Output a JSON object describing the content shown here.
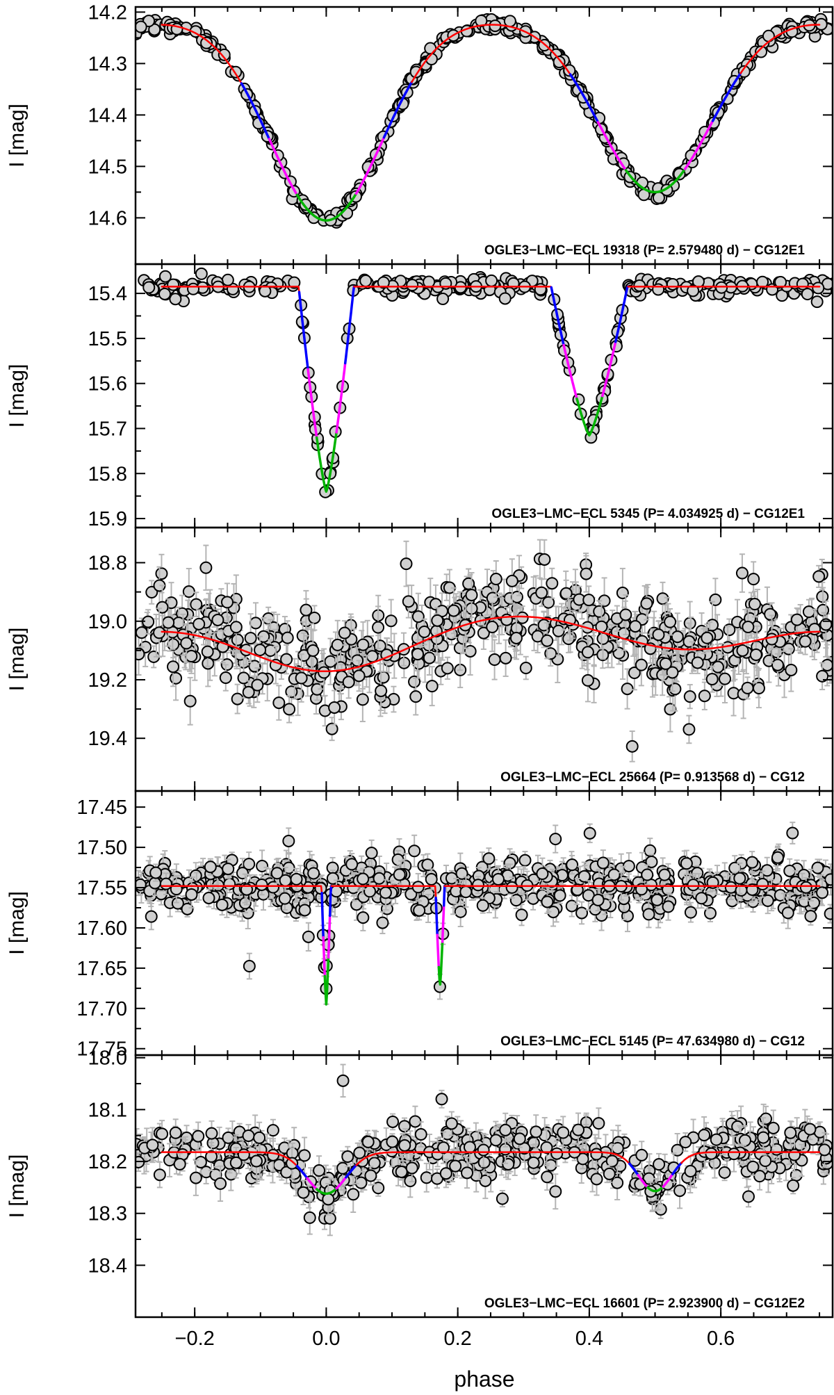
{
  "chart_data": [
    {
      "type": "scatter",
      "id": "p1",
      "annotation": "OGLE3−LMC−ECL 19318  (P= 2.579480 d) − CG12E1",
      "ylabel": "I [mag]",
      "ylim": [
        14.19,
        14.69
      ],
      "yticks": [
        14.2,
        14.3,
        14.4,
        14.5,
        14.6
      ],
      "ytick_labels": [
        "14.2",
        "14.3",
        "14.4",
        "14.5",
        "14.6"
      ],
      "model": {
        "base": 14.215,
        "fit_range": [
          -0.25,
          0.75
        ],
        "eclipses": [
          {
            "center": 0.0,
            "depth": 0.39,
            "width": 0.085,
            "shape": "gauss",
            "ingress": 0.13,
            "core": 0.045
          },
          {
            "center": 0.5,
            "depth": 0.335,
            "width": 0.085,
            "shape": "gauss",
            "ingress": 0.13,
            "core": 0.045
          }
        ]
      },
      "scatter": {
        "n": 420,
        "sigma": 0.006,
        "err": 0.006,
        "outliers": 0,
        "seed": 7
      }
    },
    {
      "type": "scatter",
      "id": "p2",
      "annotation": "OGLE3−LMC−ECL 5345  (P= 4.034925 d) − CG12E1",
      "ylabel": "I [mag]",
      "ylim": [
        15.335,
        15.92
      ],
      "yticks": [
        15.4,
        15.5,
        15.6,
        15.7,
        15.8,
        15.9
      ],
      "ytick_labels": [
        "15.4",
        "15.5",
        "15.6",
        "15.7",
        "15.8",
        "15.9"
      ],
      "model": {
        "base": 15.385,
        "fit_range": [
          -0.25,
          0.75
        ],
        "eclipses": [
          {
            "center": 0.0,
            "depth": 0.455,
            "width": 0.042,
            "shape": "v",
            "ingress": 0.042,
            "core": 0.015
          },
          {
            "center": 0.4,
            "depth": 0.33,
            "width": 0.058,
            "shape": "v",
            "ingress": 0.058,
            "core": 0.02
          }
        ]
      },
      "scatter": {
        "n": 330,
        "sigma": 0.009,
        "err": 0.007,
        "outliers": 0,
        "seed": 11
      }
    },
    {
      "type": "scatter",
      "id": "p3",
      "annotation": "OGLE3−LMC−ECL 25664  (P= 0.913568 d) − CG12",
      "ylabel": "I [mag]",
      "ylim": [
        18.68,
        19.58
      ],
      "yticks": [
        18.8,
        19.0,
        19.2,
        19.4
      ],
      "ytick_labels": [
        "18.8",
        "19.0",
        "19.2",
        "19.4"
      ],
      "model": {
        "base": 18.925,
        "fit_range": [
          -0.25,
          0.75
        ],
        "eclipses": [
          {
            "center": 0.0,
            "depth": 0.245,
            "width": 0.14,
            "shape": "gauss",
            "ingress": 0.0,
            "core": 0.0
          },
          {
            "center": 0.55,
            "depth": 0.17,
            "width": 0.14,
            "shape": "gauss",
            "ingress": 0.0,
            "core": 0.0
          }
        ]
      },
      "scatter": {
        "n": 520,
        "sigma": 0.08,
        "err": 0.06,
        "outliers": 20,
        "seed": 23
      }
    },
    {
      "type": "scatter",
      "id": "p4",
      "annotation": "OGLE3−LMC−ECL 5145  (P= 47.634980 d) − CG12",
      "ylabel": "I [mag]",
      "ylim": [
        17.43,
        17.758
      ],
      "yticks": [
        17.45,
        17.5,
        17.55,
        17.6,
        17.65,
        17.7,
        17.75
      ],
      "ytick_labels": [
        "17.45",
        "17.50",
        "17.55",
        "17.60",
        "17.65",
        "17.70",
        "17.75"
      ],
      "model": {
        "base": 17.548,
        "fit_range": [
          -0.25,
          0.75
        ],
        "eclipses": [
          {
            "center": 0.0,
            "depth": 0.147,
            "width": 0.007,
            "shape": "v",
            "ingress": 0.007,
            "core": 0.003
          },
          {
            "center": 0.173,
            "depth": 0.125,
            "width": 0.007,
            "shape": "v",
            "ingress": 0.007,
            "core": 0.003
          }
        ]
      },
      "scatter": {
        "n": 520,
        "sigma": 0.016,
        "err": 0.014,
        "outliers": 12,
        "seed": 31
      }
    },
    {
      "type": "scatter",
      "id": "p5",
      "annotation": "OGLE3−LMC−ECL 16601  (P= 2.923900 d) − CG12E2",
      "ylabel": "I [mag]",
      "ylim": [
        17.995,
        18.5
      ],
      "yticks": [
        18.0,
        18.1,
        18.2,
        18.3,
        18.4
      ],
      "ytick_labels": [
        "18.0",
        "18.1",
        "18.2",
        "18.3",
        "18.4"
      ],
      "model": {
        "base": 18.182,
        "fit_range": [
          -0.25,
          0.75
        ],
        "eclipses": [
          {
            "center": 0.0,
            "depth": 0.08,
            "width": 0.03,
            "shape": "gauss",
            "ingress": 0.045,
            "core": 0.015
          },
          {
            "center": 0.5,
            "depth": 0.075,
            "width": 0.025,
            "shape": "gauss",
            "ingress": 0.04,
            "core": 0.012
          }
        ]
      },
      "scatter": {
        "n": 440,
        "sigma": 0.028,
        "err": 0.025,
        "outliers": 12,
        "seed": 47
      }
    }
  ],
  "xaxis": {
    "xlim": [
      -0.29,
      0.77
    ],
    "xticks": [
      -0.2,
      0.0,
      0.2,
      0.4,
      0.6
    ],
    "xtick_labels": [
      "−0.2",
      "0.0",
      "0.2",
      "0.4",
      "0.6"
    ],
    "xlabel": "phase"
  },
  "colors": {
    "points_face": "#d0d0d0",
    "points_edge": "#000000",
    "errorbars": "#b4b4b4",
    "fit": "#ff0000",
    "ingress": "#0000ff",
    "mid": "#ff00ff",
    "core": "#00b400"
  }
}
